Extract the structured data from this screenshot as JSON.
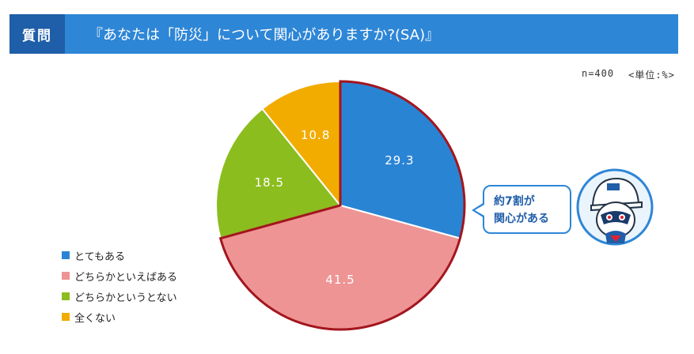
{
  "header": {
    "badge": "質問",
    "title": "『あなたは「防災」について関心がありますか?(SA)』"
  },
  "meta": {
    "sample": "n=400",
    "unit": "<単位:%>"
  },
  "callout": {
    "line1": "約7割が",
    "line2": "関心がある"
  },
  "colors": {
    "border_highlight": "#a3161e",
    "header_bg": "#2e86d6",
    "header_badge_bg": "#1f5ea8"
  },
  "mascot": {
    "icon": "mascot-character-icon"
  },
  "chart_data": {
    "type": "pie",
    "title": "",
    "slices": [
      {
        "label": "とてもある",
        "value": 29.3,
        "display": "29.3",
        "color": "#2a84d4"
      },
      {
        "label": "どちらかといえばある",
        "value": 41.5,
        "display": "41.5",
        "color": "#ee9494"
      },
      {
        "label": "どちらかというとない",
        "value": 18.5,
        "display": "18.5",
        "color": "#8cbd1f"
      },
      {
        "label": "全くない",
        "value": 10.8,
        "display": "10.8",
        "color": "#f2ac00"
      }
    ],
    "start_angle": "12 o'clock",
    "direction": "clockwise",
    "highlighted_slices": [
      "とてもある",
      "どちらかといえばある"
    ],
    "legend_position": "bottom-left"
  }
}
